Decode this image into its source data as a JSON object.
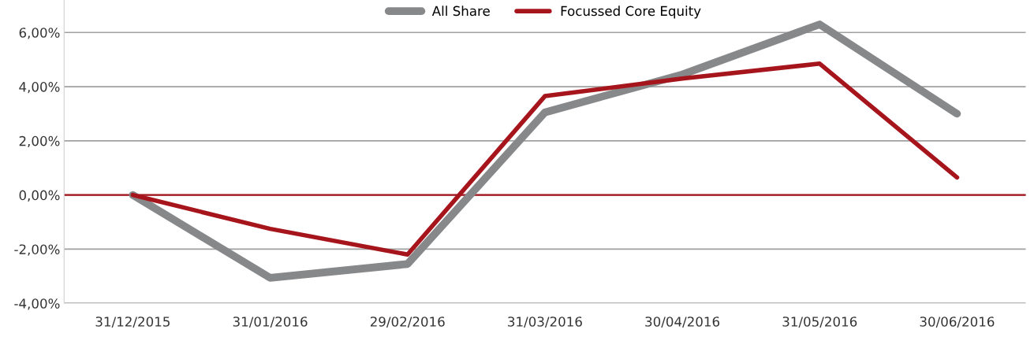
{
  "chart_data": {
    "type": "line",
    "categories": [
      "31/12/2015",
      "31/01/2016",
      "29/02/2016",
      "31/03/2016",
      "30/04/2016",
      "31/05/2016",
      "30/06/2016"
    ],
    "series": [
      {
        "name": "All Share",
        "color": "#87888a",
        "values": [
          0,
          -3.06,
          -2.55,
          3.05,
          4.45,
          6.3,
          3.0
        ]
      },
      {
        "name": "Focussed Core Equity",
        "color": "#a6141c",
        "values": [
          0,
          -1.25,
          -2.2,
          3.65,
          4.3,
          4.85,
          0.65
        ]
      }
    ],
    "ylim": [
      -4,
      7.2
    ],
    "yticks": [
      {
        "value": -4,
        "label": "-4,00%"
      },
      {
        "value": -2,
        "label": "-2,00%"
      },
      {
        "value": 0,
        "label": "0,00%"
      },
      {
        "value": 2,
        "label": "2,00%"
      },
      {
        "value": 4,
        "label": "4,00%"
      },
      {
        "value": 6,
        "label": "6,00%"
      }
    ],
    "ref_lines": [
      {
        "axis": "y",
        "value": 0,
        "color": "#a6141c"
      }
    ],
    "grid": "y",
    "legend": "top",
    "marker": "none",
    "line_style": "solid"
  }
}
